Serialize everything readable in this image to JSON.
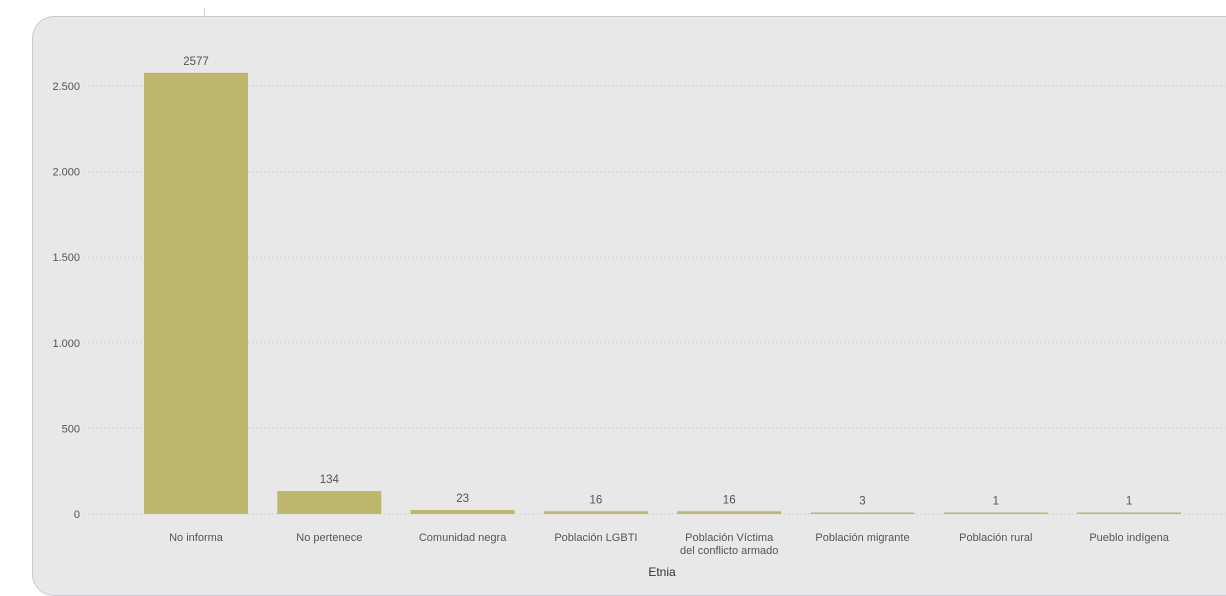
{
  "chart_data": {
    "type": "bar",
    "title": "",
    "xlabel": "Etnia",
    "ylabel": "",
    "ylim": [
      0,
      2700
    ],
    "yticks": [
      0,
      500,
      1000,
      1500,
      2000,
      2500
    ],
    "ytick_labels": [
      "0",
      "500",
      "1.000",
      "1.500",
      "2.000",
      "2.500"
    ],
    "grid": true,
    "categories": [
      "No informa",
      "No pertenece",
      "Comunidad negra",
      "Población LGBTI",
      "Población Víctima del conflicto armado",
      "Población migrante",
      "Población rural",
      "Pueblo indígena"
    ],
    "values": [
      2577,
      134,
      23,
      16,
      16,
      3,
      1,
      1
    ],
    "data_labels": [
      "2577",
      "134",
      "23",
      "16",
      "16",
      "3",
      "1",
      "1"
    ],
    "colors": {
      "bar": "#bdb76b",
      "panel": "#e8e8e8",
      "grid": "#c4c4c4"
    }
  }
}
